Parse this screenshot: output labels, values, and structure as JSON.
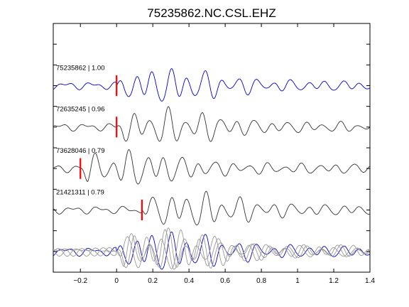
{
  "chart_data": {
    "type": "line",
    "title": "75235862.NC.CSL.EHZ",
    "xlabel": "",
    "ylabel": "",
    "xlim": [
      -0.35,
      1.4
    ],
    "x_ticks": [
      -0.2,
      0,
      0.2,
      0.4,
      0.6,
      0.8,
      1,
      1.2,
      1.4
    ],
    "x_tick_labels": [
      "−0.2",
      "0",
      "0.2",
      "0.4",
      "0.6",
      "0.8",
      "1",
      "1.2",
      "1.4"
    ],
    "ylim": [
      -0.5,
      5.5
    ],
    "y_ticks": [
      0,
      0.5,
      1,
      1.5,
      2,
      2.5,
      3,
      3.5,
      4,
      4.5,
      5
    ],
    "grid": false,
    "legend": "none",
    "colors": {
      "primary": "#0000cc",
      "secondary": "#333333",
      "overlay_gray": "#999999",
      "pick": "#ff0000"
    },
    "series": [
      {
        "label": "75235862 | 1.00",
        "offset": 4,
        "color": "#0000cc",
        "pick_time": 0.0,
        "seed": 1.3
      },
      {
        "label": "72635245 | 0.96",
        "offset": 3,
        "color": "#333333",
        "pick_time": 0.0,
        "seed": 2.7
      },
      {
        "label": "73628046 | 0.79",
        "offset": 2,
        "color": "#333333",
        "pick_time": -0.2,
        "seed": 4.1
      },
      {
        "label": "21421311 | 0.79",
        "offset": 1,
        "color": "#333333",
        "pick_time": 0.14,
        "seed": 5.9
      }
    ],
    "stack": {
      "offset": 0,
      "color": "#0000cc"
    }
  }
}
